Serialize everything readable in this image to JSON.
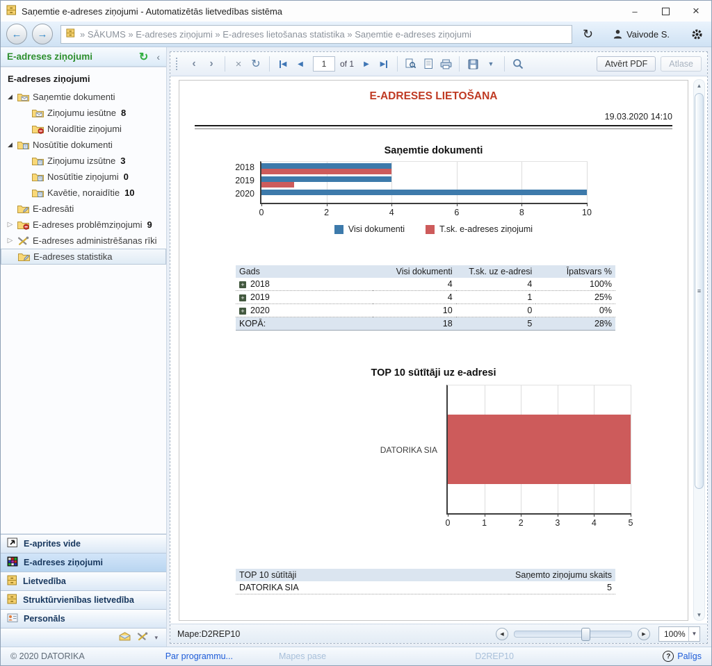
{
  "window": {
    "title": "Saņemtie e-adreses ziņojumi - Automatizētās lietvedības sistēma"
  },
  "navbar": {
    "breadcrumb": "» SĀKUMS » E-adreses ziņojumi » E-adreses lietošanas statistika » Saņemtie e-adreses ziņojumi",
    "user": "Vaivode S."
  },
  "sidebar": {
    "header": {
      "title": "E-adreses ziņojumi"
    },
    "root_label": "E-adreses ziņojumi",
    "tree": [
      {
        "label": "Saņemtie dokumenti",
        "count": "",
        "level": 0,
        "expander": "expanded",
        "icon": "folder-mail",
        "selected": false
      },
      {
        "label": "Ziņojumu iesūtne",
        "count": "8",
        "level": 1,
        "expander": "none",
        "icon": "folder-mail",
        "selected": false
      },
      {
        "label": "Noraidītie ziņojumi",
        "count": "",
        "level": 1,
        "expander": "none",
        "icon": "folder-rejected",
        "selected": false
      },
      {
        "label": "Nosūtītie dokumenti",
        "count": "",
        "level": 0,
        "expander": "expanded",
        "icon": "folder-sent",
        "selected": false
      },
      {
        "label": "Ziņojumu izsūtne",
        "count": "3",
        "level": 1,
        "expander": "none",
        "icon": "folder-sent",
        "selected": false
      },
      {
        "label": "Nosūtītie ziņojumi",
        "count": "0",
        "level": 1,
        "expander": "none",
        "icon": "folder-sent",
        "selected": false
      },
      {
        "label": "Kavētie, noraidītie",
        "count": "10",
        "level": 1,
        "expander": "none",
        "icon": "folder-sent",
        "selected": false
      },
      {
        "label": "E-adresāti",
        "count": "",
        "level": 0,
        "expander": "none",
        "icon": "folder-edit",
        "selected": false
      },
      {
        "label": "E-adreses problēmziņojumi",
        "count": "9",
        "level": 0,
        "expander": "collapsed",
        "icon": "folder-rejected",
        "selected": false
      },
      {
        "label": "E-adreses administrēšanas rīki",
        "count": "",
        "level": 0,
        "expander": "collapsed",
        "icon": "tools",
        "selected": false
      },
      {
        "label": "E-adreses statistika",
        "count": "",
        "level": 0,
        "expander": "none",
        "icon": "folder-edit",
        "selected": true
      }
    ],
    "panels": [
      {
        "label": "E-aprites vide",
        "icon": "arrow-app",
        "selected": false
      },
      {
        "label": "E-adreses ziņojumi",
        "icon": "grid-app",
        "selected": true
      },
      {
        "label": "Lietvedība",
        "icon": "cabinet",
        "selected": false
      },
      {
        "label": "Struktūrvienības lietvedība",
        "icon": "cabinet",
        "selected": false
      },
      {
        "label": "Personāls",
        "icon": "person-card",
        "selected": false
      }
    ]
  },
  "toolbar": {
    "page_number": "1",
    "page_of": "of 1",
    "open_pdf_label": "Atvērt PDF",
    "atlase_label": "Atlase"
  },
  "report": {
    "title": "E-ADRESES LIETOŠANA",
    "datetime": "19.03.2020 14:10",
    "table1": {
      "headers": [
        "Gads",
        "Visi dokumenti",
        "T.sk. uz e-adresi",
        "Īpatsvars %"
      ],
      "rows": [
        [
          "2018",
          "4",
          "4",
          "100%"
        ],
        [
          "2019",
          "4",
          "1",
          "25%"
        ],
        [
          "2020",
          "10",
          "0",
          "0%"
        ]
      ],
      "total": [
        "KOPĀ:",
        "18",
        "5",
        "28%"
      ]
    },
    "table2": {
      "headers": [
        "TOP 10 sūtītāji",
        "Saņemto ziņojumu skaits"
      ],
      "rows": [
        [
          "DATORIKA SIA",
          "5"
        ]
      ]
    }
  },
  "chart_data": [
    {
      "type": "bar",
      "orientation": "horizontal",
      "title": "Saņemtie dokumenti",
      "categories": [
        "2018",
        "2019",
        "2020"
      ],
      "series": [
        {
          "name": "Visi dokumenti",
          "color": "#3d7aab",
          "values": [
            4,
            4,
            10
          ]
        },
        {
          "name": "T.sk. e-adreses ziņojumi",
          "color": "#cd5b5b",
          "values": [
            4,
            1,
            0
          ]
        }
      ],
      "xlim": [
        0,
        10
      ],
      "xticks": [
        0,
        2,
        4,
        6,
        8,
        10
      ],
      "grid": true,
      "legend_position": "bottom"
    },
    {
      "type": "bar",
      "orientation": "horizontal",
      "title": "TOP 10 sūtītāji uz e-adresi",
      "categories": [
        "DATORIKA SIA"
      ],
      "series": [
        {
          "name": "Saņemto ziņojumu skaits",
          "color": "#cd5b5b",
          "values": [
            5
          ]
        }
      ],
      "xlim": [
        0,
        5
      ],
      "xticks": [
        0,
        1,
        2,
        3,
        4,
        5
      ],
      "grid": true,
      "legend_position": "none"
    }
  ],
  "viewer_footer": {
    "mape": "Mape:D2REP10",
    "zoom_value": "100%"
  },
  "statusbar": {
    "copyright": "© 2020 DATORIKA",
    "about_link": "Par programmu...",
    "mapes_pase": "Mapes pase",
    "code": "D2REP10",
    "help_label": "Palīgs"
  }
}
